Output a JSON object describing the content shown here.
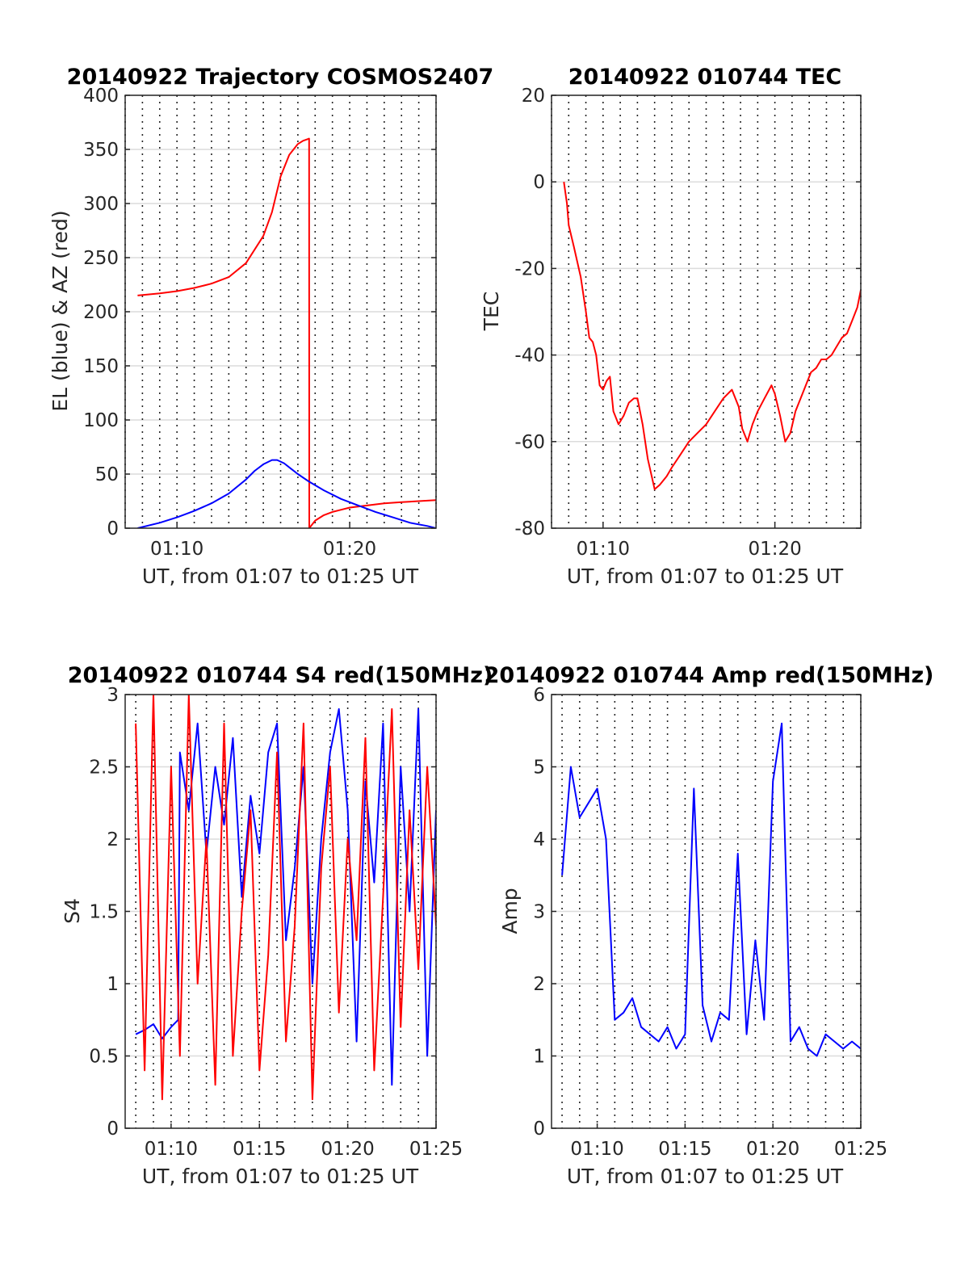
{
  "chart_data": [
    {
      "type": "line",
      "title": "20140922 Trajectory COSMOS2407",
      "xlabel": "UT, from 01:07 to 01:25 UT",
      "ylabel": "EL (blue) & AZ (red)",
      "xlim": [
        7.0,
        25.0
      ],
      "ylim": [
        0,
        400
      ],
      "x_ticks": [
        {
          "v": 10,
          "label": "01:10"
        },
        {
          "v": 20,
          "label": "01:20"
        }
      ],
      "y_ticks": [
        0,
        50,
        100,
        150,
        200,
        250,
        300,
        350,
        400
      ],
      "grid": true,
      "series": [
        {
          "color": "#ff0000",
          "x": [
            7.72,
            9.0,
            10.0,
            11.0,
            12.0,
            13.0,
            14.0,
            15.0,
            15.5,
            16.0,
            16.5,
            17.0,
            17.3,
            17.65,
            17.66,
            18.0,
            18.5,
            19.0,
            19.5,
            20.0,
            21.0,
            22.0,
            23.0,
            24.0,
            25.0
          ],
          "y": [
            215,
            217,
            219,
            222,
            226,
            232,
            245,
            270,
            292,
            325,
            345,
            355,
            358,
            360,
            0,
            7,
            12,
            15,
            17,
            19,
            21,
            23,
            24,
            25,
            26
          ]
        },
        {
          "color": "#0000ff",
          "x": [
            7.72,
            9.0,
            10.0,
            11.0,
            12.0,
            13.0,
            14.0,
            14.5,
            15.0,
            15.5,
            15.8,
            16.2,
            16.6,
            17.0,
            17.65,
            18.5,
            19.5,
            20.5,
            21.5,
            22.5,
            23.5,
            24.5,
            25.0
          ],
          "y": [
            0,
            5,
            10,
            16,
            23,
            32,
            45,
            53,
            59,
            63,
            63,
            60,
            55,
            50,
            43,
            35,
            27,
            21,
            15,
            10,
            5,
            2,
            0
          ]
        }
      ]
    },
    {
      "type": "line",
      "title": "20140922 010744 TEC",
      "xlabel": "UT, from 01:07 to 01:25 UT",
      "ylabel": "TEC",
      "xlim": [
        7.0,
        25.0
      ],
      "ylim": [
        -80,
        20
      ],
      "x_ticks": [
        {
          "v": 10,
          "label": "01:10"
        },
        {
          "v": 20,
          "label": "01:20"
        }
      ],
      "y_ticks": [
        -80,
        -60,
        -40,
        -20,
        0,
        20
      ],
      "grid": true,
      "series": [
        {
          "color": "#ff0000",
          "x": [
            7.72,
            7.9,
            8.0,
            8.3,
            8.7,
            9.0,
            9.2,
            9.4,
            9.6,
            9.8,
            10.0,
            10.2,
            10.4,
            10.6,
            10.9,
            11.2,
            11.5,
            11.8,
            12.0,
            12.3,
            12.6,
            13.0,
            13.3,
            13.7,
            14.0,
            14.5,
            15.0,
            15.5,
            16.0,
            16.5,
            17.0,
            17.5,
            17.9,
            18.1,
            18.4,
            18.7,
            19.0,
            19.4,
            19.8,
            20.0,
            20.3,
            20.6,
            20.9,
            21.2,
            21.5,
            21.8,
            22.1,
            22.4,
            22.7,
            23.0,
            23.3,
            23.6,
            23.9,
            24.2,
            24.5,
            24.8,
            25.0
          ],
          "y": [
            0,
            -5,
            -10,
            -15,
            -22,
            -30,
            -36,
            -37,
            -40,
            -47,
            -48,
            -46,
            -45,
            -53,
            -56,
            -54,
            -51,
            -50,
            -50,
            -56,
            -64,
            -71,
            -70,
            -68,
            -66,
            -63,
            -60,
            -58,
            -56,
            -53,
            -50,
            -48,
            -52,
            -57,
            -60,
            -56,
            -53,
            -50,
            -47,
            -49,
            -54,
            -60,
            -58,
            -53,
            -50,
            -47,
            -44,
            -43,
            -41,
            -41,
            -40,
            -38,
            -36,
            -35,
            -32,
            -29,
            -25
          ]
        }
      ]
    },
    {
      "type": "line",
      "title": "20140922 010744 S4 red(150MHz)",
      "xlabel": "UT, from 01:07 to 01:25 UT",
      "ylabel": "S4",
      "xlim": [
        7.4,
        25.0
      ],
      "ylim": [
        0,
        3
      ],
      "x_ticks": [
        {
          "v": 10,
          "label": "01:10"
        },
        {
          "v": 15,
          "label": "01:15"
        },
        {
          "v": 20,
          "label": "01:20"
        },
        {
          "v": 25,
          "label": "01:25"
        }
      ],
      "y_ticks": [
        0,
        0.5,
        1,
        1.5,
        2,
        2.5,
        3
      ],
      "grid": true,
      "series": [
        {
          "color": "#0000ff",
          "x": [
            8.0,
            8.5,
            9.0,
            9.5,
            10.0,
            10.4,
            10.5,
            11.0,
            11.5,
            12.0,
            12.5,
            13.0,
            13.5,
            14.0,
            14.5,
            15.0,
            15.5,
            16.0,
            16.5,
            17.0,
            17.5,
            18.0,
            18.5,
            19.0,
            19.5,
            20.0,
            20.5,
            21.0,
            21.5,
            22.0,
            22.5,
            23.0,
            23.5,
            24.0,
            24.5,
            25.0
          ],
          "y": [
            0.65,
            0.68,
            0.72,
            0.62,
            0.7,
            0.75,
            2.6,
            2.2,
            2.8,
            1.9,
            2.5,
            2.1,
            2.7,
            1.6,
            2.3,
            1.9,
            2.6,
            2.8,
            1.3,
            1.8,
            2.5,
            1.0,
            2.0,
            2.6,
            2.9,
            2.2,
            0.6,
            2.4,
            1.7,
            2.8,
            0.3,
            2.5,
            1.5,
            2.9,
            0.5,
            2.2
          ]
        },
        {
          "color": "#ff0000",
          "x": [
            8.0,
            8.5,
            9.0,
            9.5,
            10.0,
            10.5,
            11.0,
            11.5,
            12.0,
            12.5,
            13.0,
            13.5,
            14.0,
            14.5,
            15.0,
            15.5,
            16.0,
            16.5,
            17.0,
            17.5,
            18.0,
            18.5,
            19.0,
            19.5,
            20.0,
            20.5,
            21.0,
            21.5,
            22.0,
            22.5,
            23.0,
            23.5,
            24.0,
            24.5,
            25.0
          ],
          "y": [
            2.8,
            0.4,
            3.0,
            0.2,
            2.5,
            0.5,
            3.0,
            1.0,
            2.0,
            0.3,
            2.8,
            0.5,
            1.5,
            2.2,
            0.4,
            1.2,
            2.6,
            0.6,
            1.4,
            2.8,
            0.2,
            1.8,
            2.5,
            0.8,
            2.0,
            1.3,
            2.7,
            0.4,
            1.6,
            2.9,
            0.7,
            2.2,
            1.1,
            2.5,
            1.4
          ]
        }
      ]
    },
    {
      "type": "line",
      "title": "20140922 010744 Amp red(150MHz)",
      "xlabel": "UT, from 01:07 to 01:25 UT",
      "ylabel": "Amp",
      "xlim": [
        7.4,
        25.0
      ],
      "ylim": [
        0,
        6
      ],
      "x_ticks": [
        {
          "v": 10,
          "label": "01:10"
        },
        {
          "v": 15,
          "label": "01:15"
        },
        {
          "v": 20,
          "label": "01:20"
        },
        {
          "v": 25,
          "label": "01:25"
        }
      ],
      "y_ticks": [
        0,
        1,
        2,
        3,
        4,
        5,
        6
      ],
      "grid": true,
      "series": [
        {
          "color": "#0000ff",
          "x": [
            8.0,
            8.5,
            9.0,
            9.5,
            10.0,
            10.5,
            11.0,
            11.5,
            12.0,
            12.5,
            13.0,
            13.5,
            14.0,
            14.5,
            15.0,
            15.5,
            16.0,
            16.5,
            17.0,
            17.5,
            18.0,
            18.5,
            19.0,
            19.5,
            20.0,
            20.5,
            21.0,
            21.5,
            22.0,
            22.5,
            23.0,
            23.5,
            24.0,
            24.5,
            25.0
          ],
          "y": [
            3.5,
            5.0,
            4.3,
            4.5,
            4.7,
            4.0,
            1.5,
            1.6,
            1.8,
            1.4,
            1.3,
            1.2,
            1.4,
            1.1,
            1.3,
            4.7,
            1.7,
            1.2,
            1.6,
            1.5,
            3.8,
            1.3,
            2.6,
            1.5,
            4.8,
            5.6,
            1.2,
            1.4,
            1.1,
            1.0,
            1.3,
            1.2,
            1.1,
            1.2,
            1.1
          ]
        }
      ]
    }
  ]
}
